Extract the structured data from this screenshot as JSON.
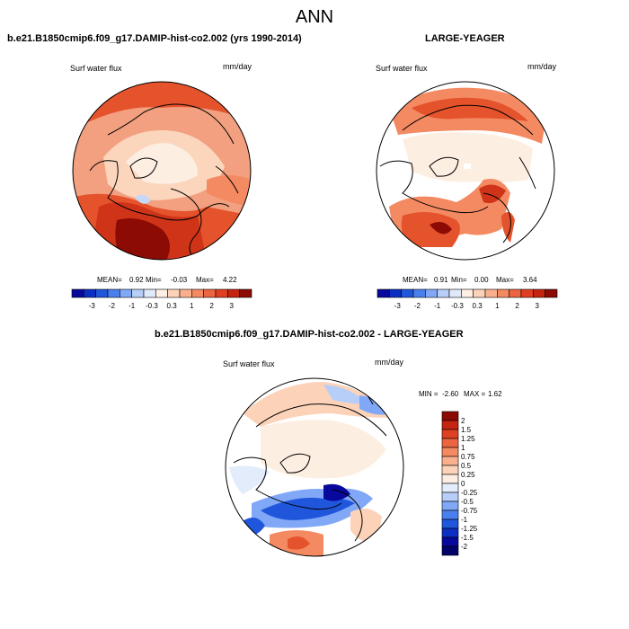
{
  "header": {
    "title": "ANN"
  },
  "panels": [
    {
      "title": "b.e21.B1850cmip6.f09_g17.DAMIP-hist-co2.002 (yrs 1990-2014)",
      "variable": "Surf water flux",
      "units": "mm/day",
      "stats": {
        "mean_label": "MEAN=",
        "mean": "0.92",
        "min_label": "Min=",
        "min": "-0.03",
        "max_label": "Max=",
        "max": "4.22"
      }
    },
    {
      "title": "LARGE-YEAGER",
      "variable": "Surf water flux",
      "units": "mm/day",
      "stats": {
        "mean_label": "MEAN=",
        "mean": "0.91",
        "min_label": "Min=",
        "min": "0.00",
        "max_label": "Max=",
        "max": "3.64"
      }
    },
    {
      "title": "b.e21.B1850cmip6.f09_g17.DAMIP-hist-co2.002 - LARGE-YEAGER",
      "variable": "Surf water flux",
      "units": "mm/day",
      "stats": {
        "min_label": "MIN =",
        "min": "-2.60",
        "max_label": "MAX =",
        "max": "1.62"
      }
    }
  ],
  "colorbars": {
    "abs_ticks": [
      "-3",
      "-2",
      "-1",
      "-0.3",
      "0.3",
      "1",
      "2",
      "3"
    ],
    "abs_colors": [
      "#08089c",
      "#0b2fc2",
      "#1f56dc",
      "#4a80ee",
      "#80a8f6",
      "#b7cef8",
      "#dfe9fa",
      "#fff0e4",
      "#fcd3b9",
      "#fab08c",
      "#f48a62",
      "#ec6440",
      "#e04022",
      "#c52410",
      "#8c0b04"
    ],
    "diff_ticks": [
      "2",
      "1.5",
      "1.25",
      "1",
      "0.75",
      "0.5",
      "0.25",
      "0",
      "-0.25",
      "-0.5",
      "-0.75",
      "-1",
      "-1.25",
      "-1.5",
      "-2"
    ],
    "diff_colors": [
      "#8c0b04",
      "#c52410",
      "#e04022",
      "#ec6440",
      "#f48a62",
      "#fab08c",
      "#fcd3b9",
      "#fdeee2",
      "#e2ecfb",
      "#b7cef8",
      "#80a8f6",
      "#4a80ee",
      "#1f56dc",
      "#0b2fc2",
      "#08089c",
      "#020269"
    ]
  },
  "chart_data": [
    {
      "type": "heatmap",
      "projection": "north-polar-stereographic",
      "title": "b.e21.B1850cmip6.f09_g17.DAMIP-hist-co2.002 (yrs 1990-2014)",
      "variable": "Surf water flux",
      "units": "mm/day",
      "mean": 0.92,
      "min": -0.03,
      "max": 4.22,
      "contour_levels": [
        -3,
        -2,
        -1,
        -0.3,
        0.3,
        1,
        2,
        3
      ]
    },
    {
      "type": "heatmap",
      "projection": "north-polar-stereographic",
      "title": "LARGE-YEAGER",
      "variable": "Surf water flux",
      "units": "mm/day",
      "mean": 0.91,
      "min": 0.0,
      "max": 3.64,
      "contour_levels": [
        -3,
        -2,
        -1,
        -0.3,
        0.3,
        1,
        2,
        3
      ]
    },
    {
      "type": "heatmap",
      "projection": "north-polar-stereographic",
      "title": "b.e21.B1850cmip6.f09_g17.DAMIP-hist-co2.002 - LARGE-YEAGER",
      "variable": "Surf water flux",
      "units": "mm/day",
      "min": -2.6,
      "max": 1.62,
      "contour_levels": [
        -2,
        -1.5,
        -1.25,
        -1,
        -0.75,
        -0.5,
        -0.25,
        0,
        0.25,
        0.5,
        0.75,
        1,
        1.25,
        1.5,
        2
      ]
    }
  ]
}
